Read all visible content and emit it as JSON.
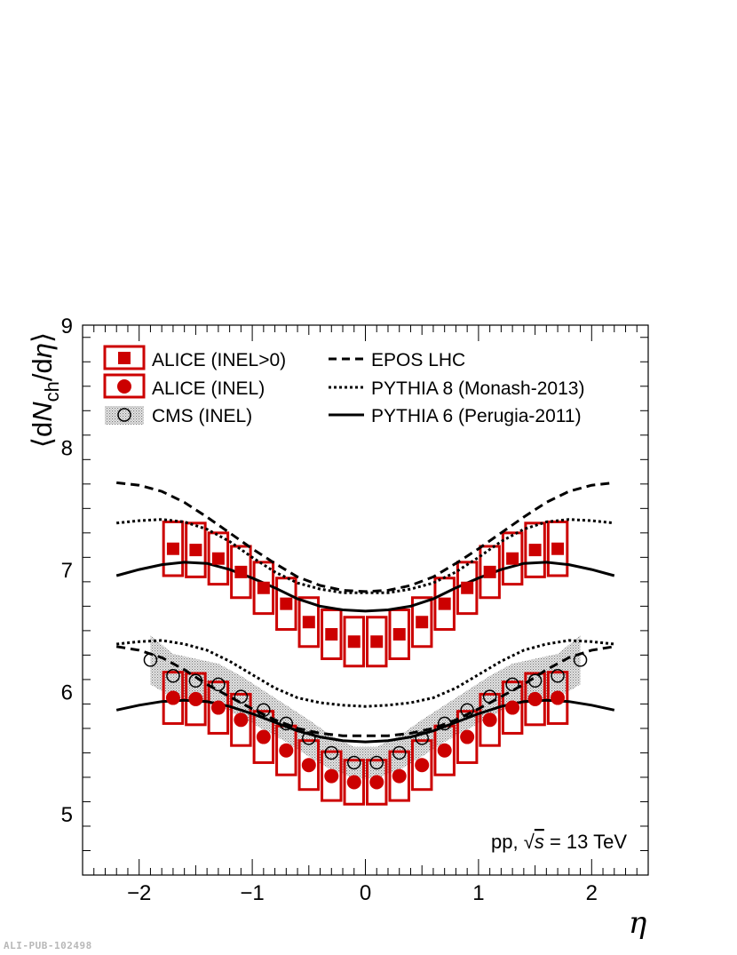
{
  "chart_data": {
    "type": "scatter",
    "ylabel_parts": {
      "open": "⟨d",
      "N": "N",
      "sub": "ch",
      "mid": "/d",
      "eta": "η",
      "close": "⟩"
    },
    "xlabel": "η",
    "xlim": [
      -2.5,
      2.5
    ],
    "ylim": [
      4.5,
      9
    ],
    "xticks": [
      -2,
      -1,
      0,
      1,
      2
    ],
    "xtick_labels": [
      "−2",
      "−1",
      "0",
      "1",
      "2"
    ],
    "yticks": [
      5,
      6,
      7,
      8,
      9
    ],
    "ytick_labels": [
      "5",
      "6",
      "7",
      "8",
      "9"
    ],
    "annotation": {
      "pp": "pp, ",
      "sqrt": "√",
      "s": "s",
      "rest": " = 13 TeV"
    },
    "legend": [
      {
        "label": "ALICE (INEL>0)",
        "marker": "square-box"
      },
      {
        "label": "ALICE (INEL)",
        "marker": "circle-box"
      },
      {
        "label": "CMS (INEL)",
        "marker": "open-circle-band"
      },
      {
        "label": "EPOS LHC",
        "style": "dashed"
      },
      {
        "label": "PYTHIA 8 (Monash-2013)",
        "style": "dotted"
      },
      {
        "label": "PYTHIA 6 (Perugia-2011)",
        "style": "solid"
      }
    ],
    "colors": {
      "alice": "#cc0000",
      "cms": "#000000",
      "band": "#bdbdbd",
      "models": "#000000"
    },
    "x": [
      -1.7,
      -1.5,
      -1.3,
      -1.1,
      -0.9,
      -0.7,
      -0.5,
      -0.3,
      -0.1,
      0.1,
      0.3,
      0.5,
      0.7,
      0.9,
      1.1,
      1.3,
      1.5,
      1.7
    ],
    "series": [
      {
        "name": "ALICE (INEL>0)",
        "marker": "square",
        "values": [
          7.17,
          7.16,
          7.09,
          6.98,
          6.85,
          6.72,
          6.57,
          6.47,
          6.41,
          6.41,
          6.47,
          6.57,
          6.72,
          6.85,
          6.98,
          7.09,
          7.16,
          7.17
        ],
        "syst": [
          0.22,
          0.22,
          0.21,
          0.21,
          0.21,
          0.21,
          0.2,
          0.2,
          0.2,
          0.2,
          0.2,
          0.2,
          0.21,
          0.21,
          0.21,
          0.21,
          0.22,
          0.22
        ]
      },
      {
        "name": "ALICE (INEL)",
        "marker": "circle",
        "values": [
          5.95,
          5.94,
          5.87,
          5.77,
          5.63,
          5.52,
          5.4,
          5.31,
          5.26,
          5.26,
          5.31,
          5.4,
          5.52,
          5.63,
          5.77,
          5.87,
          5.94,
          5.95
        ],
        "syst": [
          0.21,
          0.21,
          0.21,
          0.21,
          0.21,
          0.2,
          0.2,
          0.2,
          0.18,
          0.18,
          0.2,
          0.2,
          0.2,
          0.21,
          0.21,
          0.21,
          0.21,
          0.21
        ]
      },
      {
        "name": "CMS (INEL)",
        "marker": "open-circle",
        "x": [
          -1.9,
          -1.7,
          -1.5,
          -1.3,
          -1.1,
          -0.9,
          -0.7,
          -0.5,
          -0.3,
          -0.1,
          0.1,
          0.3,
          0.5,
          0.7,
          0.9,
          1.1,
          1.3,
          1.5,
          1.7,
          1.9
        ],
        "values": [
          6.26,
          6.13,
          6.09,
          6.06,
          5.96,
          5.85,
          5.74,
          5.62,
          5.5,
          5.42,
          5.42,
          5.5,
          5.62,
          5.74,
          5.85,
          5.96,
          6.06,
          6.09,
          6.13,
          6.26
        ],
        "band": [
          0.2,
          0.18,
          0.18,
          0.17,
          0.17,
          0.16,
          0.15,
          0.15,
          0.14,
          0.13,
          0.13,
          0.14,
          0.15,
          0.15,
          0.16,
          0.17,
          0.17,
          0.18,
          0.18,
          0.2
        ]
      }
    ],
    "models": [
      {
        "name": "EPOS LHC",
        "style": "dashed",
        "x": [
          -2.2,
          -2.0,
          -1.8,
          -1.6,
          -1.4,
          -1.2,
          -1.0,
          -0.8,
          -0.6,
          -0.4,
          -0.2,
          0.0,
          0.2,
          0.4,
          0.6,
          0.8,
          1.0,
          1.2,
          1.4,
          1.6,
          1.8,
          2.0,
          2.2
        ],
        "curves": [
          [
            7.71,
            7.69,
            7.64,
            7.55,
            7.43,
            7.3,
            7.17,
            7.05,
            6.94,
            6.87,
            6.83,
            6.82,
            6.83,
            6.87,
            6.94,
            7.05,
            7.17,
            7.3,
            7.43,
            7.55,
            7.64,
            7.69,
            7.71
          ],
          [
            6.37,
            6.34,
            6.28,
            6.18,
            6.06,
            5.96,
            5.86,
            5.77,
            5.7,
            5.66,
            5.64,
            5.64,
            5.64,
            5.66,
            5.7,
            5.77,
            5.86,
            5.96,
            6.06,
            6.18,
            6.28,
            6.34,
            6.37
          ]
        ]
      },
      {
        "name": "PYTHIA 8 (Monash-2013)",
        "style": "dotted",
        "x": [
          -2.2,
          -2.0,
          -1.8,
          -1.6,
          -1.4,
          -1.2,
          -1.0,
          -0.8,
          -0.6,
          -0.4,
          -0.2,
          0.0,
          0.2,
          0.4,
          0.6,
          0.8,
          1.0,
          1.2,
          1.4,
          1.6,
          1.8,
          2.0,
          2.2
        ],
        "curves": [
          [
            7.38,
            7.4,
            7.41,
            7.39,
            7.33,
            7.23,
            7.1,
            6.98,
            6.89,
            6.84,
            6.81,
            6.81,
            6.81,
            6.84,
            6.89,
            6.98,
            7.1,
            7.23,
            7.33,
            7.39,
            7.41,
            7.4,
            7.38
          ],
          [
            6.39,
            6.41,
            6.42,
            6.39,
            6.34,
            6.25,
            6.14,
            6.03,
            5.95,
            5.91,
            5.89,
            5.88,
            5.89,
            5.91,
            5.95,
            6.03,
            6.14,
            6.25,
            6.34,
            6.39,
            6.42,
            6.41,
            6.39
          ]
        ]
      },
      {
        "name": "PYTHIA 6 (Perugia-2011)",
        "style": "solid",
        "x": [
          -2.2,
          -2.0,
          -1.8,
          -1.6,
          -1.4,
          -1.2,
          -1.0,
          -0.8,
          -0.6,
          -0.4,
          -0.2,
          0.0,
          0.2,
          0.4,
          0.6,
          0.8,
          1.0,
          1.2,
          1.4,
          1.6,
          1.8,
          2.0,
          2.2
        ],
        "curves": [
          [
            6.95,
            7.0,
            7.04,
            7.06,
            7.05,
            7.0,
            6.93,
            6.85,
            6.76,
            6.7,
            6.67,
            6.66,
            6.67,
            6.7,
            6.76,
            6.85,
            6.93,
            7.0,
            7.05,
            7.06,
            7.04,
            7.0,
            6.95
          ],
          [
            5.85,
            5.89,
            5.92,
            5.93,
            5.92,
            5.88,
            5.82,
            5.75,
            5.68,
            5.63,
            5.6,
            5.59,
            5.6,
            5.63,
            5.68,
            5.75,
            5.82,
            5.88,
            5.92,
            5.93,
            5.92,
            5.89,
            5.85
          ]
        ]
      }
    ]
  },
  "watermark": "ALI-PUB-102498"
}
